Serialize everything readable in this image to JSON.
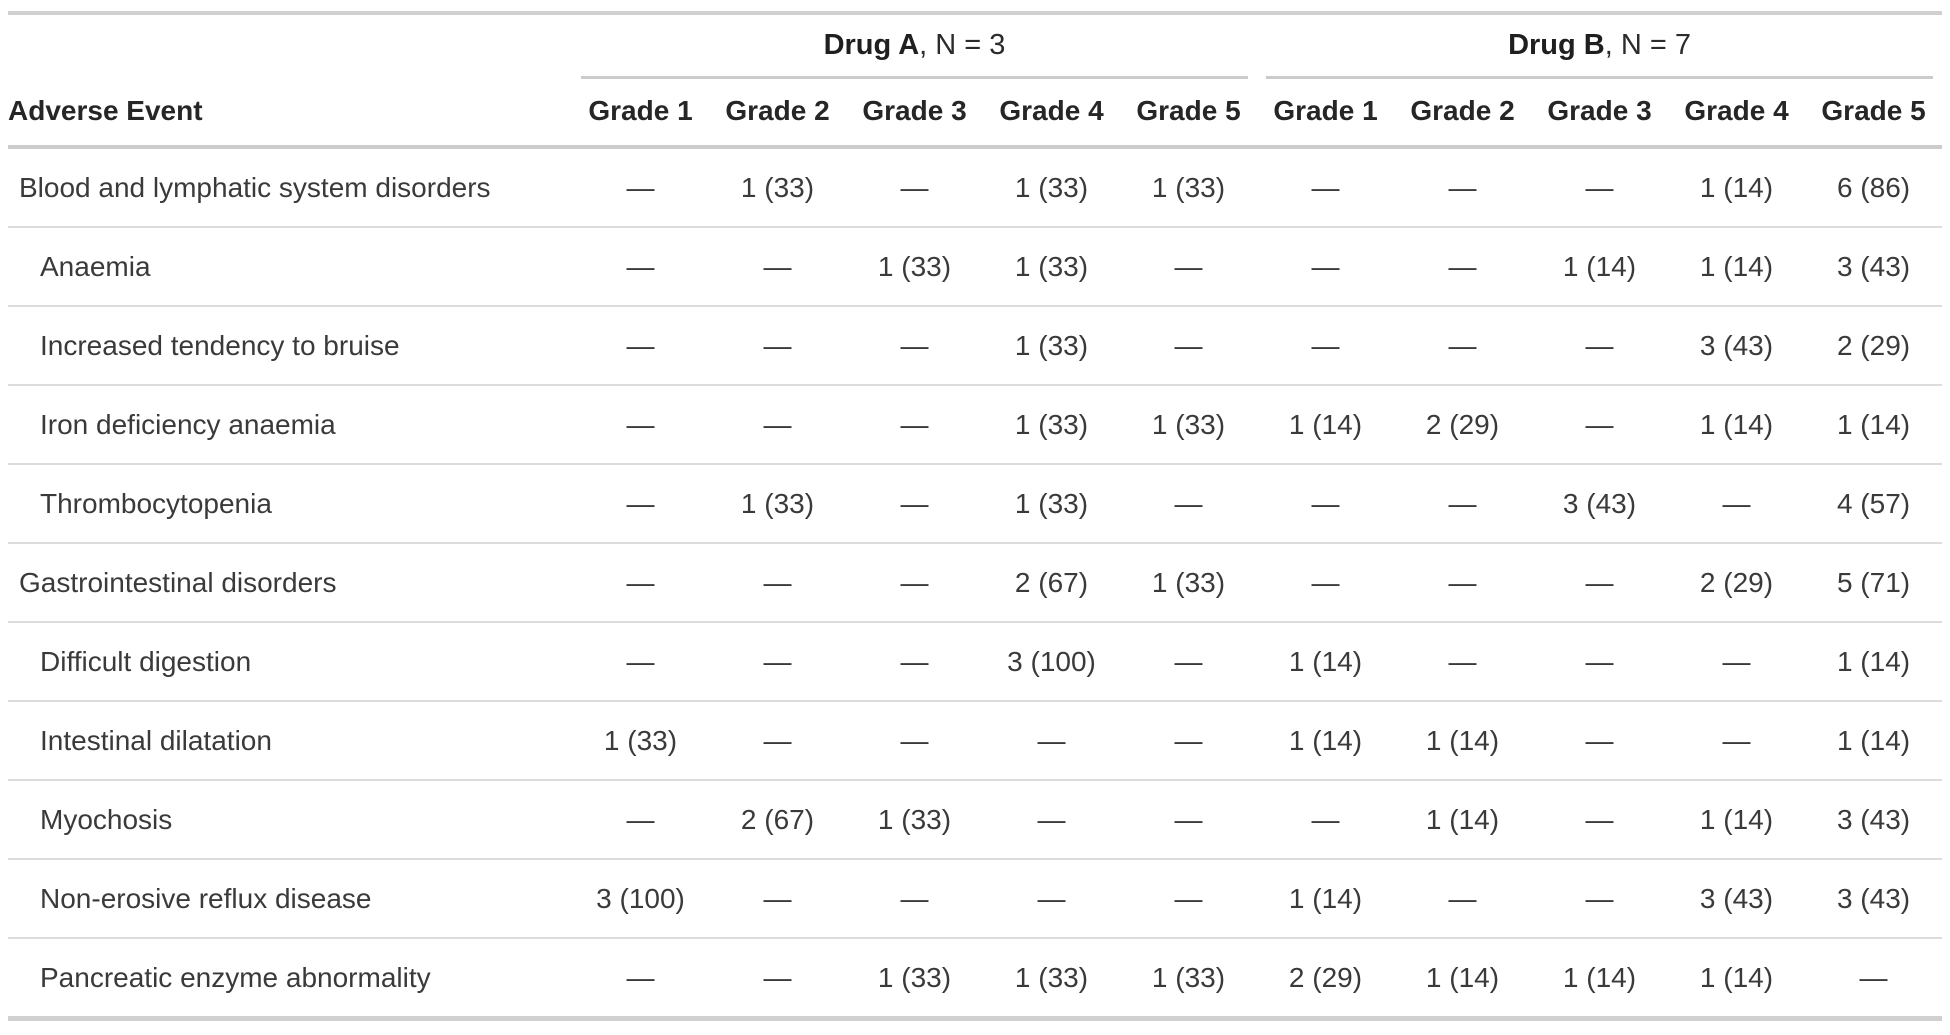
{
  "colors": {
    "background": "#ffffff",
    "body_text": "#3a3a3a",
    "header_text": "#262626",
    "outer_border": "#d0d0d0",
    "header_rule": "#cccccc",
    "row_rule": "#dcdcdc"
  },
  "chart_data": {
    "type": "table",
    "event_column_header": "Adverse Event",
    "column_groups": [
      {
        "name": "Drug A",
        "suffix": ", N = 3",
        "n": 3
      },
      {
        "name": "Drug B",
        "suffix": ", N = 7",
        "n": 7
      }
    ],
    "grade_columns": [
      "Grade 1",
      "Grade 2",
      "Grade 3",
      "Grade 4",
      "Grade 5"
    ],
    "empty_cell_symbol": "—",
    "rows": [
      {
        "event": "Blood and lymphatic system disorders",
        "indent": false,
        "drug_a": [
          "—",
          "1 (33)",
          "—",
          "1 (33)",
          "1 (33)"
        ],
        "drug_b": [
          "—",
          "—",
          "—",
          "1 (14)",
          "6 (86)"
        ]
      },
      {
        "event": "Anaemia",
        "indent": true,
        "drug_a": [
          "—",
          "—",
          "1 (33)",
          "1 (33)",
          "—"
        ],
        "drug_b": [
          "—",
          "—",
          "1 (14)",
          "1 (14)",
          "3 (43)"
        ]
      },
      {
        "event": "Increased tendency to bruise",
        "indent": true,
        "drug_a": [
          "—",
          "—",
          "—",
          "1 (33)",
          "—"
        ],
        "drug_b": [
          "—",
          "—",
          "—",
          "3 (43)",
          "2 (29)"
        ]
      },
      {
        "event": "Iron deficiency anaemia",
        "indent": true,
        "drug_a": [
          "—",
          "—",
          "—",
          "1 (33)",
          "1 (33)"
        ],
        "drug_b": [
          "1 (14)",
          "2 (29)",
          "—",
          "1 (14)",
          "1 (14)"
        ]
      },
      {
        "event": "Thrombocytopenia",
        "indent": true,
        "drug_a": [
          "—",
          "1 (33)",
          "—",
          "1 (33)",
          "—"
        ],
        "drug_b": [
          "—",
          "—",
          "3 (43)",
          "—",
          "4 (57)"
        ]
      },
      {
        "event": "Gastrointestinal disorders",
        "indent": false,
        "drug_a": [
          "—",
          "—",
          "—",
          "2 (67)",
          "1 (33)"
        ],
        "drug_b": [
          "—",
          "—",
          "—",
          "2 (29)",
          "5 (71)"
        ]
      },
      {
        "event": "Difficult digestion",
        "indent": true,
        "drug_a": [
          "—",
          "—",
          "—",
          "3 (100)",
          "—"
        ],
        "drug_b": [
          "1 (14)",
          "—",
          "—",
          "—",
          "1 (14)"
        ]
      },
      {
        "event": "Intestinal dilatation",
        "indent": true,
        "drug_a": [
          "1 (33)",
          "—",
          "—",
          "—",
          "—"
        ],
        "drug_b": [
          "1 (14)",
          "1 (14)",
          "—",
          "—",
          "1 (14)"
        ]
      },
      {
        "event": "Myochosis",
        "indent": true,
        "drug_a": [
          "—",
          "2 (67)",
          "1 (33)",
          "—",
          "—"
        ],
        "drug_b": [
          "—",
          "1 (14)",
          "—",
          "1 (14)",
          "3 (43)"
        ]
      },
      {
        "event": "Non-erosive reflux disease",
        "indent": true,
        "drug_a": [
          "3 (100)",
          "—",
          "—",
          "—",
          "—"
        ],
        "drug_b": [
          "1 (14)",
          "—",
          "—",
          "3 (43)",
          "3 (43)"
        ]
      },
      {
        "event": "Pancreatic enzyme abnormality",
        "indent": true,
        "drug_a": [
          "—",
          "—",
          "1 (33)",
          "1 (33)",
          "1 (33)"
        ],
        "drug_b": [
          "2 (29)",
          "1 (14)",
          "1 (14)",
          "1 (14)",
          "—"
        ]
      }
    ]
  }
}
